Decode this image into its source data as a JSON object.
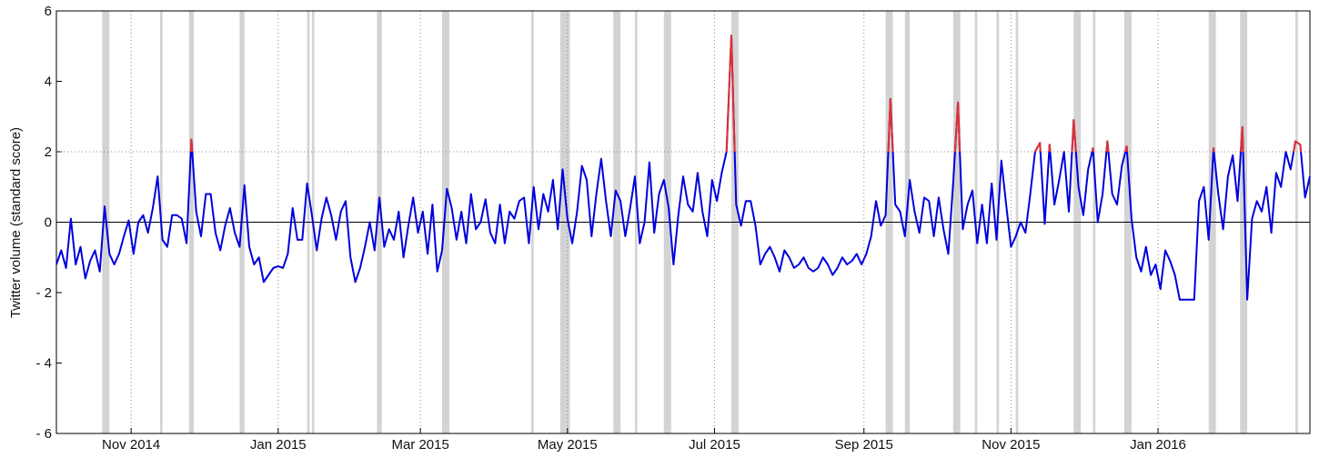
{
  "chart_data": {
    "type": "line",
    "y_label": "Twitter volume (standard score)",
    "color": "#0000dd",
    "threshold": 2,
    "threshold_color": "#e03030",
    "band_color": "#d3d3d3",
    "xlim": [
      0,
      520
    ],
    "xticks": [
      {
        "value": 31,
        "label": "Nov 2014"
      },
      {
        "value": 92,
        "label": "Jan 2015"
      },
      {
        "value": 151,
        "label": "Mar 2015"
      },
      {
        "value": 212,
        "label": "May 2015"
      },
      {
        "value": 273,
        "label": "Jul 2015"
      },
      {
        "value": 335,
        "label": "Sep 2015"
      },
      {
        "value": 396,
        "label": "Nov 2015"
      },
      {
        "value": 457,
        "label": "Jan 2016"
      }
    ],
    "ylim": [
      -6,
      6
    ],
    "yticks": [
      {
        "value": -6,
        "label": "- 6"
      },
      {
        "value": -4,
        "label": "- 4"
      },
      {
        "value": -2,
        "label": "- 2"
      },
      0,
      2,
      4,
      6
    ],
    "grid": true,
    "shaded_regions": [
      [
        19,
        22
      ],
      [
        43,
        44
      ],
      [
        55,
        57
      ],
      [
        76,
        78
      ],
      [
        104,
        105
      ],
      [
        106,
        107
      ],
      [
        133,
        135
      ],
      [
        160,
        163
      ],
      [
        197,
        198
      ],
      [
        209,
        213
      ],
      [
        231,
        234
      ],
      [
        240,
        241
      ],
      [
        252,
        255
      ],
      [
        280,
        283
      ],
      [
        344,
        347
      ],
      [
        352,
        354
      ],
      [
        372,
        375
      ],
      [
        381,
        382
      ],
      [
        390,
        391
      ],
      [
        398,
        399
      ],
      [
        422,
        425
      ],
      [
        430,
        431
      ],
      [
        443,
        446
      ],
      [
        478,
        481
      ],
      [
        491,
        494
      ],
      [
        514,
        515
      ]
    ],
    "x": [
      0,
      2,
      4,
      6,
      8,
      10,
      12,
      14,
      16,
      18,
      20,
      22,
      24,
      26,
      28,
      30,
      32,
      34,
      36,
      38,
      40,
      42,
      44,
      46,
      48,
      50,
      52,
      54,
      56,
      58,
      60,
      62,
      64,
      66,
      68,
      70,
      72,
      74,
      76,
      78,
      80,
      82,
      84,
      86,
      88,
      90,
      92,
      94,
      96,
      98,
      100,
      102,
      104,
      106,
      108,
      110,
      112,
      114,
      116,
      118,
      120,
      122,
      124,
      126,
      128,
      130,
      132,
      134,
      136,
      138,
      140,
      142,
      144,
      146,
      148,
      150,
      152,
      154,
      156,
      158,
      160,
      162,
      164,
      166,
      168,
      170,
      172,
      174,
      176,
      178,
      180,
      182,
      184,
      186,
      188,
      190,
      192,
      194,
      196,
      198,
      200,
      202,
      204,
      206,
      208,
      210,
      212,
      214,
      216,
      218,
      220,
      222,
      224,
      226,
      228,
      230,
      232,
      234,
      236,
      238,
      240,
      242,
      244,
      246,
      248,
      250,
      252,
      254,
      256,
      258,
      260,
      262,
      264,
      266,
      268,
      270,
      272,
      274,
      276,
      278,
      280,
      282,
      284,
      286,
      288,
      290,
      292,
      294,
      296,
      298,
      300,
      302,
      304,
      306,
      308,
      310,
      312,
      314,
      316,
      318,
      320,
      322,
      324,
      326,
      328,
      330,
      332,
      334,
      336,
      338,
      340,
      342,
      344,
      346,
      348,
      350,
      352,
      354,
      356,
      358,
      360,
      362,
      364,
      366,
      368,
      370,
      372,
      374,
      376,
      378,
      380,
      382,
      384,
      386,
      388,
      390,
      392,
      394,
      396,
      398,
      400,
      402,
      404,
      406,
      408,
      410,
      412,
      414,
      416,
      418,
      420,
      422,
      424,
      426,
      428,
      430,
      432,
      434,
      436,
      438,
      440,
      442,
      444,
      446,
      448,
      450,
      452,
      454,
      456,
      458,
      460,
      462,
      464,
      466,
      468,
      470,
      472,
      474,
      476,
      478,
      480,
      482,
      484,
      486,
      488,
      490,
      492,
      494,
      496,
      498,
      500,
      502,
      504,
      506,
      508,
      510,
      512,
      514,
      516,
      518,
      520
    ],
    "values": [
      -1.2,
      -0.8,
      -1.3,
      0.1,
      -1.2,
      -0.7,
      -1.6,
      -1.1,
      -0.8,
      -1.4,
      0.45,
      -0.9,
      -1.2,
      -0.9,
      -0.4,
      0.05,
      -0.9,
      0.0,
      0.2,
      -0.3,
      0.4,
      1.3,
      -0.5,
      -0.7,
      0.2,
      0.2,
      0.1,
      -0.6,
      2.35,
      0.3,
      -0.4,
      0.8,
      0.8,
      -0.3,
      -0.8,
      -0.1,
      0.4,
      -0.3,
      -0.7,
      1.05,
      -0.7,
      -1.2,
      -1.0,
      -1.7,
      -1.5,
      -1.3,
      -1.25,
      -1.3,
      -0.9,
      0.4,
      -0.5,
      -0.5,
      1.1,
      0.2,
      -0.8,
      0.1,
      0.7,
      0.2,
      -0.5,
      0.3,
      0.6,
      -1.0,
      -1.7,
      -1.3,
      -0.7,
      0.0,
      -0.8,
      0.7,
      -0.7,
      -0.2,
      -0.5,
      0.3,
      -1.0,
      -0.1,
      0.7,
      -0.3,
      0.3,
      -0.9,
      0.5,
      -1.4,
      -0.8,
      0.95,
      0.4,
      -0.5,
      0.3,
      -0.6,
      0.8,
      -0.2,
      0.0,
      0.65,
      -0.3,
      -0.6,
      0.5,
      -0.6,
      0.3,
      0.1,
      0.6,
      0.7,
      -0.6,
      1.0,
      -0.2,
      0.8,
      0.3,
      1.2,
      -0.2,
      1.5,
      0.1,
      -0.6,
      0.3,
      1.6,
      1.2,
      -0.4,
      0.8,
      1.8,
      0.6,
      -0.4,
      0.9,
      0.6,
      -0.4,
      0.4,
      1.3,
      -0.6,
      0.0,
      1.7,
      -0.3,
      0.8,
      1.2,
      0.4,
      -1.2,
      0.2,
      1.3,
      0.5,
      0.3,
      1.4,
      0.3,
      -0.4,
      1.2,
      0.6,
      1.4,
      2.0,
      5.3,
      0.5,
      -0.1,
      0.6,
      0.6,
      -0.1,
      -1.2,
      -0.9,
      -0.7,
      -1.0,
      -1.4,
      -0.8,
      -1.0,
      -1.3,
      -1.2,
      -1.0,
      -1.3,
      -1.4,
      -1.3,
      -1.0,
      -1.2,
      -1.5,
      -1.3,
      -1.0,
      -1.2,
      -1.1,
      -0.9,
      -1.2,
      -0.9,
      -0.4,
      0.6,
      -0.1,
      0.2,
      3.5,
      0.5,
      0.3,
      -0.4,
      1.2,
      0.3,
      -0.3,
      0.7,
      0.6,
      -0.4,
      0.7,
      -0.2,
      -0.9,
      1.1,
      3.4,
      -0.2,
      0.5,
      0.9,
      -0.6,
      0.5,
      -0.6,
      1.1,
      -0.5,
      1.75,
      0.5,
      -0.7,
      -0.4,
      0.0,
      -0.3,
      0.8,
      2.0,
      2.25,
      -0.05,
      2.2,
      0.5,
      1.2,
      2.0,
      0.3,
      2.9,
      1.0,
      0.2,
      1.5,
      2.1,
      0.0,
      0.8,
      2.3,
      0.8,
      0.5,
      1.6,
      2.15,
      0.1,
      -1.0,
      -1.4,
      -0.7,
      -1.5,
      -1.2,
      -1.9,
      -0.8,
      -1.1,
      -1.5,
      -2.2,
      -2.2,
      -2.2,
      -2.2,
      0.6,
      1.0,
      -0.5,
      2.1,
      0.8,
      -0.2,
      1.3,
      1.9,
      0.6,
      2.7,
      -2.2,
      0.1,
      0.6,
      0.3,
      1.0,
      -0.3,
      1.4,
      1.0,
      2.0,
      1.5,
      2.3,
      2.2,
      0.7,
      1.3
    ]
  }
}
